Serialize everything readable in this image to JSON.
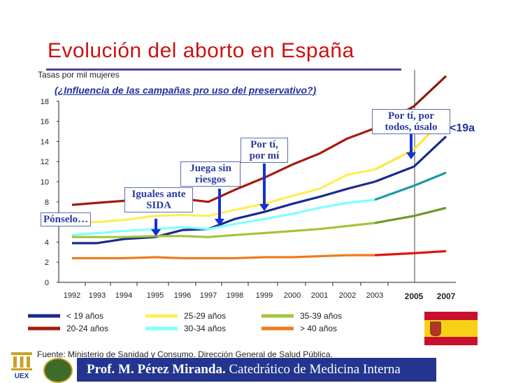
{
  "title": "Evolución del aborto en España",
  "subtitle": "(¿Influencia de las campañas pro uso del preservativo?)",
  "y_axis_label": "Tasas por mil mujeres",
  "source": "Fuente: Ministerio de Sanidad y Consumo. Dirección General de Salud Pública.",
  "footer": {
    "name": "Prof. M. Pérez Miranda.",
    "role": " Catedrático de Medicina Interna"
  },
  "callouts": {
    "ponselo": "Pónselo…",
    "iguales": "Iguales ante SIDA",
    "juega": "Juega sin riesgos",
    "porti": "Por tí, por mí",
    "portodos": "Por tí, por todos, úsalo"
  },
  "end_label": "<19a",
  "logos": {
    "ex": "UEX"
  },
  "colors": {
    "title": "#cc1111",
    "under19": "#1a2a8c",
    "age20_24": "#a51b0b",
    "age25_29": "#ffee55",
    "age30_34": "#80ffff",
    "age35_39": "#a2c53a",
    "over40": "#f07a1a",
    "projection_under19": "#1a2a8c",
    "projection_20_24": "#8b1a0c",
    "projection_25_29": "#ffe640",
    "projection_30_34": "#1a9aa8",
    "projection_35_39": "#6a9a2a",
    "projection_over40": "#e0140a",
    "arrow": "#1530d8"
  },
  "chart_data": {
    "type": "line",
    "title": "Evolución del aborto en España",
    "ylabel": "Tasas por mil mujeres",
    "ylim": [
      0,
      18
    ],
    "yticks": [
      "0",
      "2",
      "4",
      "6",
      "8",
      "10",
      "12",
      "14",
      "16",
      "18"
    ],
    "categories": [
      "1992",
      "1993",
      "1994",
      "1995",
      "1996",
      "1997",
      "1998",
      "1999",
      "2000",
      "2001",
      "2002",
      "2003",
      "2005",
      "2007"
    ],
    "grid": false,
    "legend": "bottom-left",
    "series": [
      {
        "name": "< 19 años",
        "values": [
          3.9,
          3.9,
          4.3,
          4.5,
          5.2,
          5.3,
          6.3,
          7.0,
          7.8,
          8.5,
          9.3,
          10.0,
          11.5,
          14.5
        ]
      },
      {
        "name": "20-24 años",
        "values": [
          7.7,
          7.9,
          8.1,
          8.3,
          8.3,
          8.0,
          9.2,
          10.4,
          11.7,
          12.8,
          14.3,
          15.3,
          17.5,
          20.5
        ]
      },
      {
        "name": "25-29 años",
        "values": [
          5.9,
          6.0,
          6.2,
          6.6,
          6.7,
          6.6,
          7.2,
          7.8,
          8.6,
          9.3,
          10.7,
          11.2,
          13.2,
          16.5
        ]
      },
      {
        "name": "30-34 años",
        "values": [
          4.7,
          4.9,
          5.1,
          5.3,
          5.5,
          5.3,
          5.8,
          6.3,
          6.8,
          7.4,
          7.9,
          8.2,
          9.6,
          10.9
        ]
      },
      {
        "name": "35-39 años",
        "values": [
          4.5,
          4.5,
          4.5,
          4.6,
          4.6,
          4.5,
          4.7,
          4.9,
          5.1,
          5.3,
          5.6,
          5.9,
          6.6,
          7.4
        ]
      },
      {
        "name": "> 40 años",
        "values": [
          2.4,
          2.4,
          2.4,
          2.5,
          2.4,
          2.4,
          2.4,
          2.5,
          2.5,
          2.6,
          2.7,
          2.7,
          2.9,
          3.1
        ]
      }
    ],
    "annotations": [
      {
        "text": "Pónselo…",
        "x": "1995"
      },
      {
        "text": "Iguales ante SIDA",
        "x": "1995"
      },
      {
        "text": "Juega sin riesgos",
        "x": "1997"
      },
      {
        "text": "Por tí, por mí",
        "x": "1998"
      },
      {
        "text": "Por tí, por todos, úsalo",
        "x": "2005"
      }
    ]
  }
}
